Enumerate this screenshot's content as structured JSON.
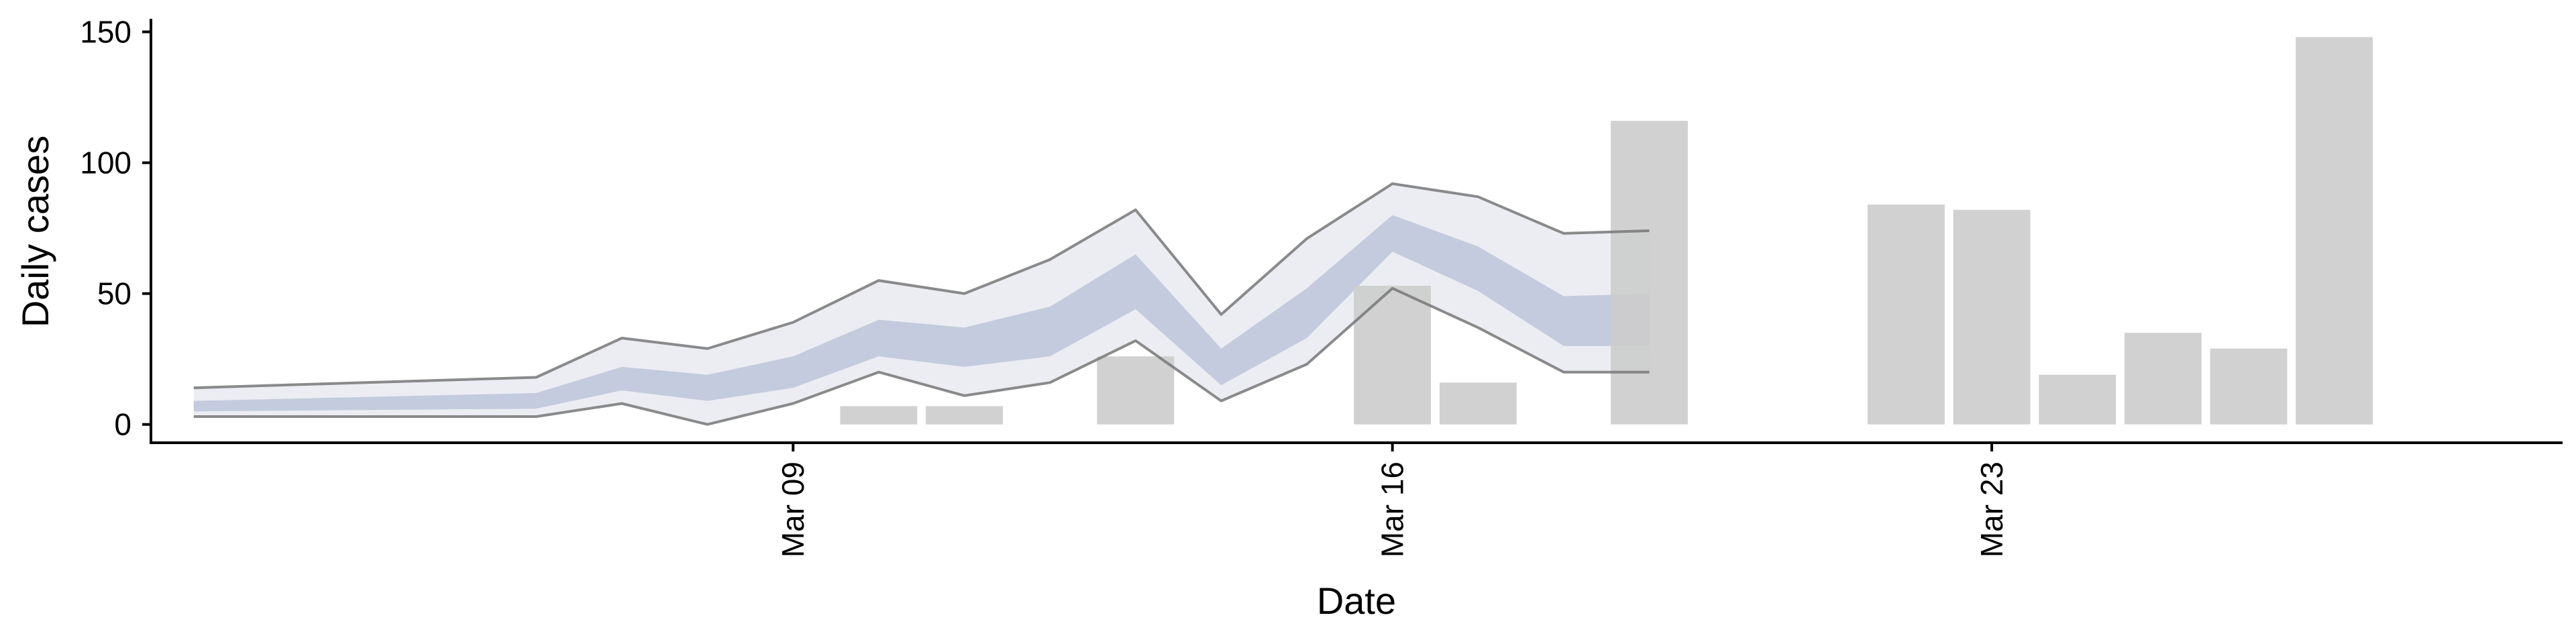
{
  "chart_data": {
    "type": "bar",
    "title": "",
    "xlabel": "Date",
    "ylabel": "Daily cases",
    "ylim": [
      -7,
      155
    ],
    "xlim": [
      "2020-03-01T12:00",
      "2020-03-29T16:00"
    ],
    "y_ticks": [
      0,
      50,
      100,
      150
    ],
    "x_ticks": [
      {
        "date": "2020-03-09",
        "label": "Mar 09"
      },
      {
        "date": "2020-03-16",
        "label": "Mar 16"
      },
      {
        "date": "2020-03-23",
        "label": "Mar 23"
      }
    ],
    "grid": false,
    "legend": "none",
    "colors": {
      "bars": "#cccccc",
      "outer_band": "#ecedf3",
      "inner_band": "#c5cbde",
      "band_edges": "#777777"
    },
    "observed_cases": {
      "dates": [
        "2020-03-10",
        "2020-03-11",
        "2020-03-13",
        "2020-03-16",
        "2020-03-17",
        "2020-03-19",
        "2020-03-22",
        "2020-03-23",
        "2020-03-24",
        "2020-03-25",
        "2020-03-26",
        "2020-03-27"
      ],
      "values": [
        7,
        7,
        26,
        53,
        16,
        116,
        84,
        82,
        19,
        35,
        29,
        148
      ]
    },
    "estimate": {
      "dates": [
        "2020-03-02",
        "2020-03-06",
        "2020-03-07",
        "2020-03-08",
        "2020-03-09",
        "2020-03-10",
        "2020-03-11",
        "2020-03-12",
        "2020-03-13",
        "2020-03-14",
        "2020-03-15",
        "2020-03-16",
        "2020-03-17",
        "2020-03-18",
        "2020-03-19"
      ],
      "outer_upper": [
        14,
        18,
        33,
        29,
        39,
        55,
        50,
        63,
        82,
        42,
        71,
        92,
        87,
        73,
        74
      ],
      "inner_upper": [
        9,
        12,
        22,
        19,
        26,
        40,
        37,
        45,
        65,
        29,
        52,
        80,
        68,
        49,
        50
      ],
      "inner_lower": [
        5,
        6,
        13,
        9,
        14,
        26,
        22,
        26,
        44,
        15,
        33,
        66,
        51,
        30,
        30
      ],
      "outer_lower": [
        3,
        3,
        8,
        0,
        8,
        20,
        11,
        16,
        32,
        9,
        23,
        52,
        37,
        20,
        20
      ]
    }
  }
}
